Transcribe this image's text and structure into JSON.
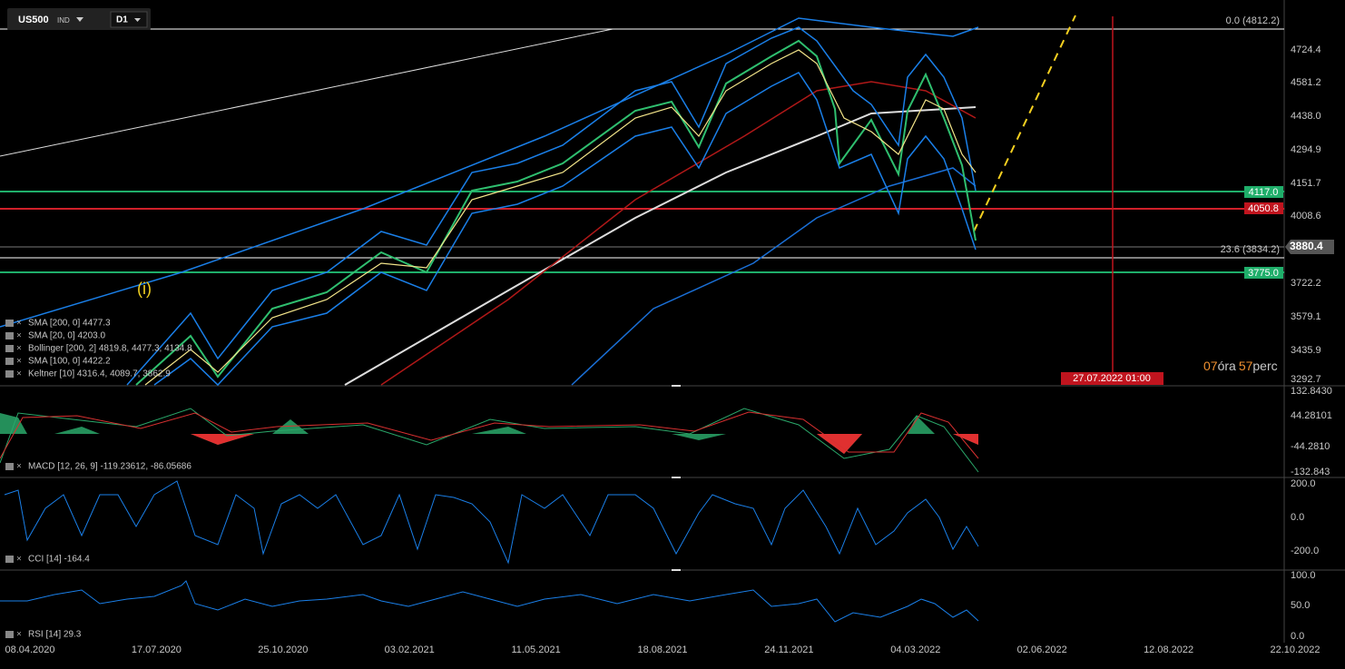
{
  "header": {
    "symbol": "US500",
    "market": "IND",
    "timeframe": "D1"
  },
  "price_axis": [
    "4724.4",
    "4581.2",
    "4438.0",
    "4294.9",
    "4151.7",
    "4008.6",
    "3722.2",
    "3579.1",
    "3435.9",
    "3292.7"
  ],
  "levels": {
    "fib_top": "0.0 (4812.2)",
    "fib_236": "23.6 (3834.2)",
    "green_upper": "4117.0",
    "red": "4050.8",
    "current": "3880.4",
    "green_lower": "3775.0"
  },
  "wave_label": "(i)",
  "crosshair_time": "27.07.2022 01:00",
  "countdown": {
    "hours": "07",
    "hours_unit": "óra",
    "minutes": "57",
    "minutes_unit": "perc"
  },
  "indicators": [
    "SMA [200, 0] 4477.3",
    "SMA [20, 0] 4203.0",
    "Bollinger [200, 2] 4819.8, 4477.3, 4134.8",
    "SMA [100, 0] 4422.2",
    "Keltner [10] 4316.4, 4089.7, 3862.9"
  ],
  "macd": {
    "legend": "MACD [12, 26, 9] -119.23612, -86.05686",
    "axis": [
      "132.8430",
      "44.28101",
      "-44.2810",
      "-132.843"
    ]
  },
  "cci": {
    "legend": "CCI [14] -164.4",
    "axis": [
      "200.0",
      "0.0",
      "-200.0"
    ]
  },
  "rsi": {
    "legend": "RSI [14] 29.3",
    "axis": [
      "100.0",
      "50.0",
      "0.0"
    ]
  },
  "dates": [
    "08.04.2020",
    "17.07.2020",
    "25.10.2020",
    "03.02.2021",
    "11.05.2021",
    "18.08.2021",
    "24.11.2021",
    "04.03.2022",
    "02.06.2022",
    "12.08.2022",
    "22.10.2022"
  ]
}
